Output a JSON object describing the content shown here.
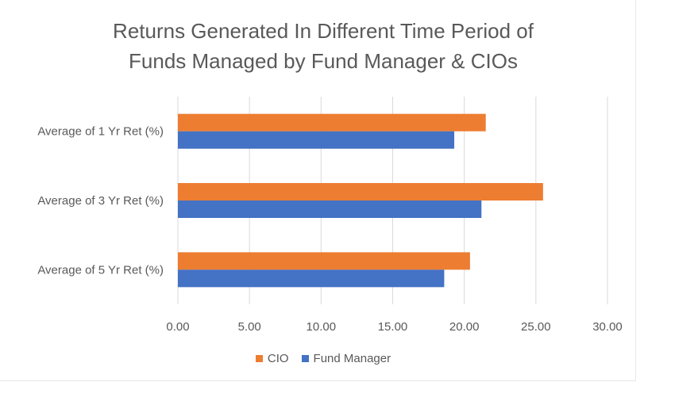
{
  "chart_data": {
    "type": "bar",
    "orientation": "horizontal",
    "title_lines": [
      "Returns Generated In Different Time Period of",
      "Funds Managed by Fund Manager & CIOs"
    ],
    "categories": [
      "Average of 1 Yr Ret (%)",
      "Average of 3 Yr Ret (%)",
      "Average of 5 Yr Ret (%)"
    ],
    "series": [
      {
        "name": "CIO",
        "color": "#ED7D31",
        "values": [
          21.5,
          25.5,
          20.4
        ]
      },
      {
        "name": "Fund Manager",
        "color": "#4472C4",
        "values": [
          19.3,
          21.2,
          18.6
        ]
      }
    ],
    "xlim": [
      0,
      30
    ],
    "xticks": [
      "0.00",
      "5.00",
      "10.00",
      "15.00",
      "20.00",
      "25.00",
      "30.00"
    ],
    "grid": "vertical",
    "legend_position": "bottom"
  }
}
